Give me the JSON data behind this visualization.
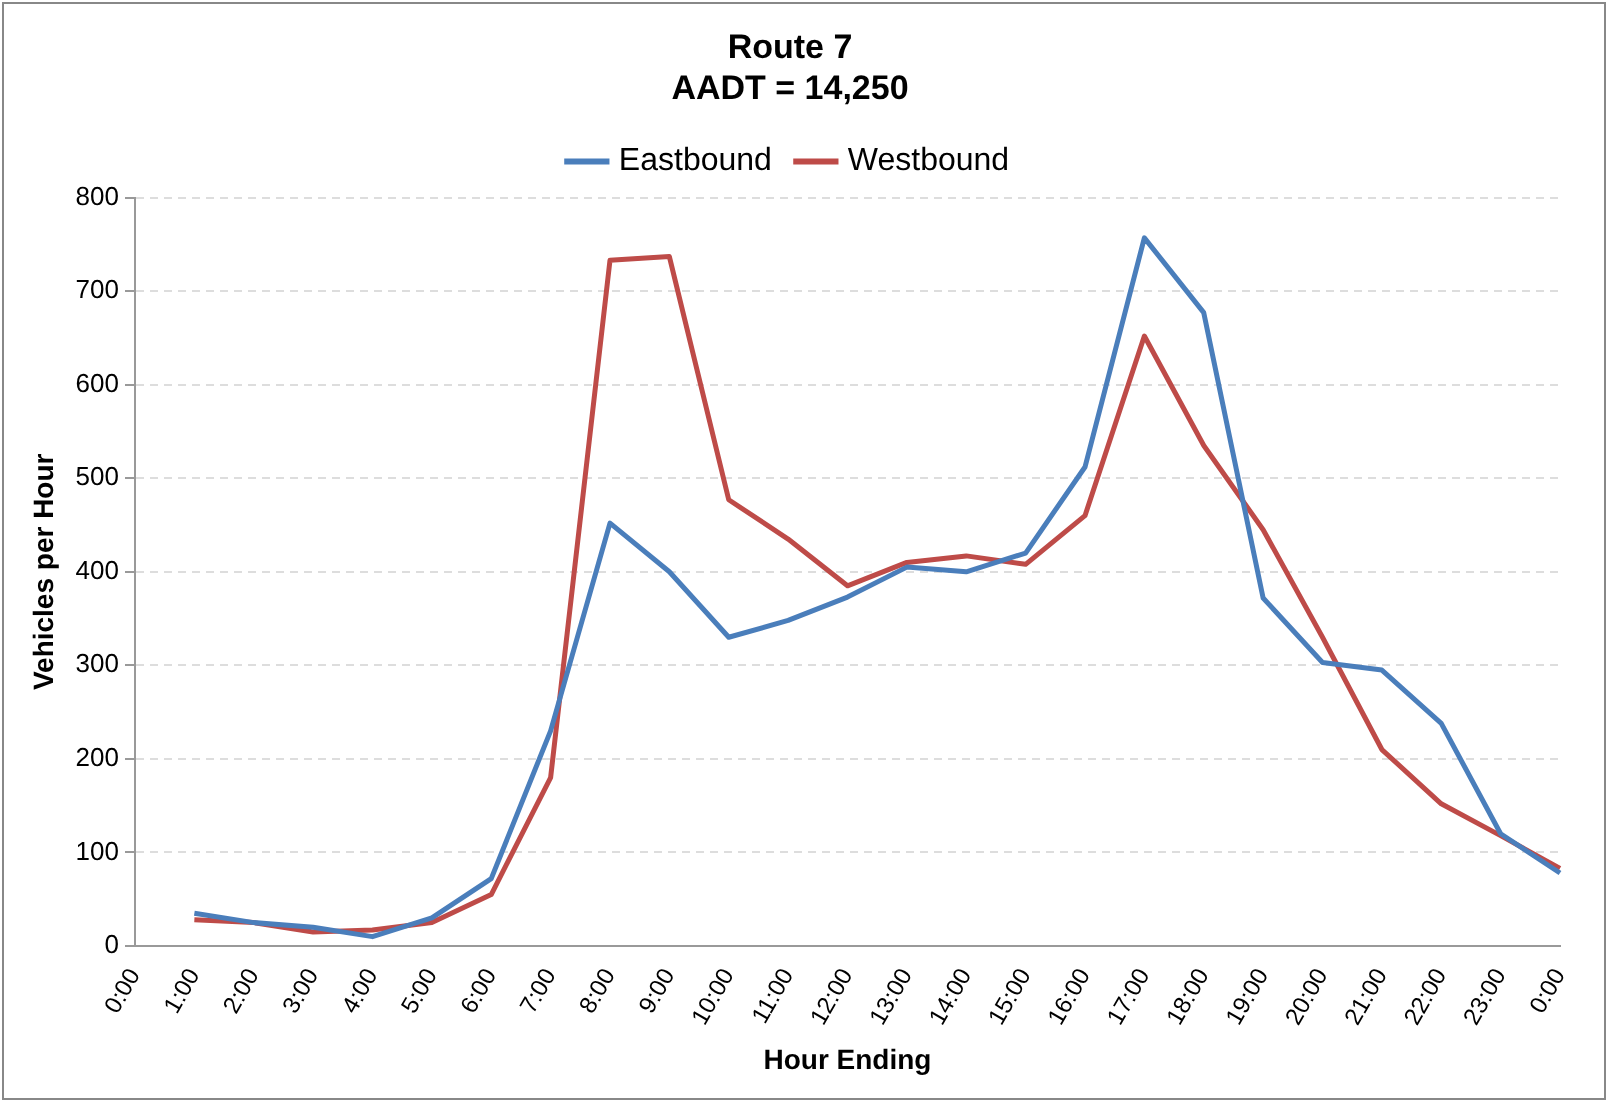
{
  "chart_data": {
    "type": "line",
    "title": "Route 7\nAADT = 14,250",
    "xlabel": "Hour Ending",
    "ylabel": "Vehicles per Hour",
    "categories": [
      "0:00",
      "1:00",
      "2:00",
      "3:00",
      "4:00",
      "5:00",
      "6:00",
      "7:00",
      "8:00",
      "9:00",
      "10:00",
      "11:00",
      "12:00",
      "13:00",
      "14:00",
      "15:00",
      "16:00",
      "17:00",
      "18:00",
      "19:00",
      "20:00",
      "21:00",
      "22:00",
      "23:00",
      "0:00"
    ],
    "series": [
      {
        "name": "Eastbound",
        "color": "#4a7ebb",
        "values": [
          null,
          35,
          25,
          20,
          10,
          30,
          72,
          230,
          452,
          400,
          330,
          348,
          373,
          405,
          400,
          420,
          512,
          757,
          677,
          372,
          303,
          295,
          238,
          120,
          78
        ]
      },
      {
        "name": "Westbound",
        "color": "#be4b48",
        "values": [
          null,
          28,
          25,
          15,
          17,
          25,
          55,
          180,
          733,
          737,
          477,
          435,
          385,
          410,
          417,
          408,
          460,
          652,
          535,
          445,
          330,
          210,
          152,
          118,
          83
        ]
      }
    ],
    "ylim": [
      0,
      800
    ],
    "yticks": [
      0,
      100,
      200,
      300,
      400,
      500,
      600,
      700,
      800
    ],
    "grid": "y",
    "legend": "top",
    "marker": "none",
    "line_style": "solid"
  }
}
